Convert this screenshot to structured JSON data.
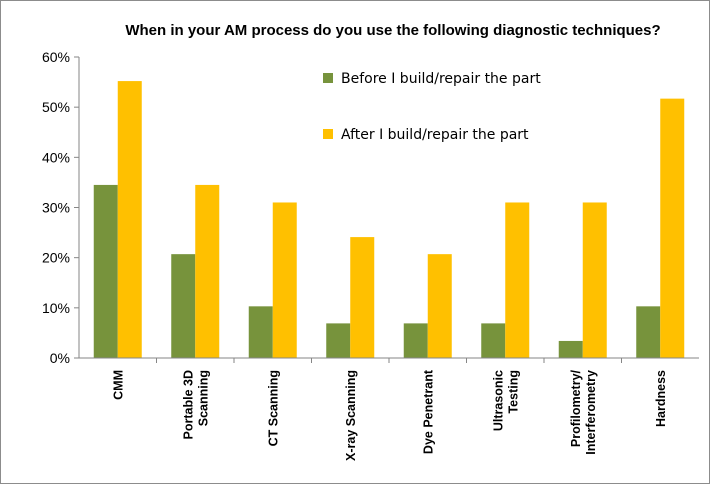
{
  "chart_data": {
    "type": "bar",
    "title": "When in your AM process do you use the following diagnostic techniques?",
    "categories": [
      [
        "CMM"
      ],
      [
        "Portable 3D",
        "Scanning"
      ],
      [
        "CT Scanning"
      ],
      [
        "X-ray Scanning"
      ],
      [
        "Dye Penetrant"
      ],
      [
        "Ultrasonic",
        "Testing"
      ],
      [
        "Profilometry/",
        "Interferometry"
      ],
      [
        "Hardness"
      ]
    ],
    "series": [
      {
        "name": "Before I build/repair the part",
        "color": "#77933c",
        "values": [
          34.5,
          20.7,
          10.3,
          6.9,
          6.9,
          6.9,
          3.4,
          10.3
        ]
      },
      {
        "name": "After I build/repair  the part",
        "color": "#ffc000",
        "values": [
          55.2,
          34.5,
          31.0,
          24.1,
          20.7,
          31.0,
          31.0,
          51.7
        ]
      }
    ],
    "yticks": [
      "0%",
      "10%",
      "20%",
      "30%",
      "40%",
      "50%",
      "60%"
    ],
    "ylim": [
      0,
      60
    ],
    "grid": false,
    "legend_position": "top-center"
  }
}
